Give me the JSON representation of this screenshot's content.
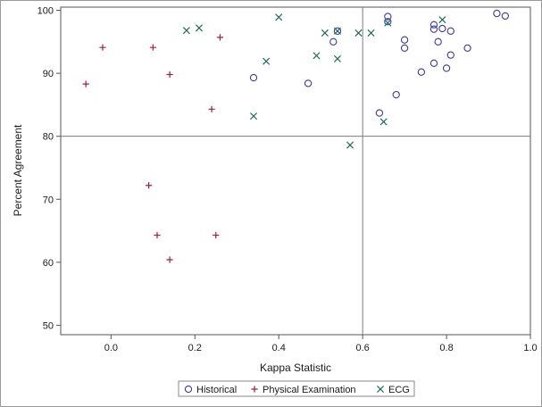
{
  "chart_data": {
    "type": "scatter",
    "xlabel": "Kappa Statistic",
    "ylabel": "Percent Agreement",
    "xlim": [
      -0.12,
      1.0
    ],
    "ylim": [
      48.5,
      100.5
    ],
    "xticks": [
      0.0,
      0.2,
      0.4,
      0.6,
      0.8,
      1.0
    ],
    "xtick_labels": [
      "0.0",
      "0.2",
      "0.4",
      "0.6",
      "0.8",
      "1.0"
    ],
    "yticks": [
      50,
      60,
      70,
      80,
      90,
      100
    ],
    "ytick_labels": [
      "50",
      "60",
      "70",
      "80",
      "90",
      "100"
    ],
    "reference_lines": {
      "x": 0.6,
      "y": 80
    },
    "grid": false,
    "legend_position": "bottom",
    "series": [
      {
        "name": "Historical",
        "marker": "circle",
        "color": "#3b3b9a",
        "points": [
          [
            0.34,
            89.3
          ],
          [
            0.47,
            88.4
          ],
          [
            0.53,
            95.0
          ],
          [
            0.54,
            96.7
          ],
          [
            0.64,
            83.7
          ],
          [
            0.66,
            99.0
          ],
          [
            0.66,
            98.2
          ],
          [
            0.68,
            86.6
          ],
          [
            0.7,
            95.3
          ],
          [
            0.7,
            94.0
          ],
          [
            0.74,
            90.2
          ],
          [
            0.77,
            97.7
          ],
          [
            0.77,
            97.0
          ],
          [
            0.77,
            91.6
          ],
          [
            0.78,
            95.0
          ],
          [
            0.79,
            97.1
          ],
          [
            0.8,
            90.8
          ],
          [
            0.81,
            96.7
          ],
          [
            0.81,
            92.9
          ],
          [
            0.85,
            94.0
          ],
          [
            0.92,
            99.5
          ],
          [
            0.94,
            99.1
          ]
        ]
      },
      {
        "name": "Physical Examination",
        "marker": "plus",
        "color": "#a01f3c",
        "points": [
          [
            -0.06,
            88.3
          ],
          [
            -0.02,
            94.1
          ],
          [
            0.09,
            72.2
          ],
          [
            0.1,
            94.1
          ],
          [
            0.11,
            64.3
          ],
          [
            0.14,
            89.8
          ],
          [
            0.14,
            60.4
          ],
          [
            0.24,
            84.3
          ],
          [
            0.25,
            64.3
          ],
          [
            0.26,
            95.7
          ]
        ]
      },
      {
        "name": "ECG",
        "marker": "x",
        "color": "#1f6b5a",
        "points": [
          [
            0.18,
            96.8
          ],
          [
            0.21,
            97.2
          ],
          [
            0.34,
            83.2
          ],
          [
            0.37,
            91.9
          ],
          [
            0.4,
            98.9
          ],
          [
            0.49,
            92.8
          ],
          [
            0.51,
            96.4
          ],
          [
            0.54,
            96.7
          ],
          [
            0.54,
            92.3
          ],
          [
            0.57,
            78.6
          ],
          [
            0.59,
            96.4
          ],
          [
            0.62,
            96.4
          ],
          [
            0.65,
            82.3
          ],
          [
            0.66,
            98.0
          ],
          [
            0.79,
            98.5
          ]
        ]
      }
    ]
  }
}
